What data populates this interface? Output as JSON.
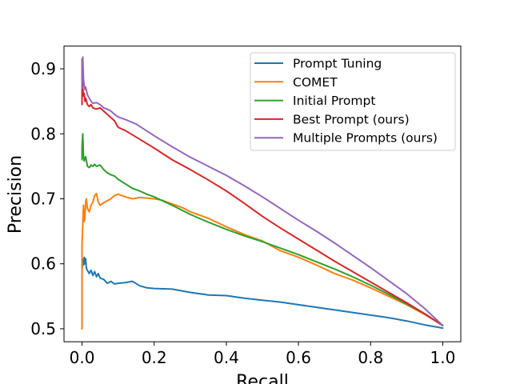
{
  "chart_data": {
    "type": "line",
    "title": "",
    "xlabel": "Recall",
    "ylabel": "Precision",
    "xlim": [
      -0.05,
      1.05
    ],
    "ylim": [
      0.48,
      0.935
    ],
    "xticks": [
      "0.0",
      "0.2",
      "0.4",
      "0.6",
      "0.8",
      "1.0"
    ],
    "yticks": [
      "0.5",
      "0.6",
      "0.7",
      "0.8",
      "0.9"
    ],
    "grid": false,
    "legend_position": "top-right",
    "series": [
      {
        "name": "Prompt Tuning",
        "color": "#1f77b4",
        "x": [
          0.0,
          0.0,
          0.002,
          0.004,
          0.006,
          0.008,
          0.01,
          0.012,
          0.015,
          0.02,
          0.025,
          0.03,
          0.035,
          0.04,
          0.045,
          0.05,
          0.06,
          0.07,
          0.08,
          0.09,
          0.1,
          0.12,
          0.14,
          0.16,
          0.18,
          0.2,
          0.25,
          0.3,
          0.35,
          0.4,
          0.45,
          0.5,
          0.55,
          0.6,
          0.65,
          0.7,
          0.75,
          0.8,
          0.85,
          0.9,
          0.95,
          1.0
        ],
        "y": [
          0.5,
          0.59,
          0.607,
          0.598,
          0.61,
          0.6,
          0.608,
          0.593,
          0.59,
          0.585,
          0.59,
          0.582,
          0.588,
          0.58,
          0.585,
          0.578,
          0.576,
          0.57,
          0.573,
          0.569,
          0.57,
          0.571,
          0.573,
          0.566,
          0.563,
          0.562,
          0.561,
          0.556,
          0.552,
          0.551,
          0.547,
          0.544,
          0.541,
          0.537,
          0.533,
          0.529,
          0.525,
          0.521,
          0.517,
          0.512,
          0.506,
          0.501
        ]
      },
      {
        "name": "COMET",
        "color": "#ff7f0e",
        "x": [
          0.0,
          0.0,
          0.002,
          0.004,
          0.006,
          0.008,
          0.01,
          0.012,
          0.015,
          0.02,
          0.025,
          0.03,
          0.035,
          0.04,
          0.045,
          0.05,
          0.06,
          0.07,
          0.08,
          0.09,
          0.1,
          0.12,
          0.14,
          0.16,
          0.18,
          0.2,
          0.22,
          0.24,
          0.26,
          0.28,
          0.3,
          0.35,
          0.4,
          0.45,
          0.5,
          0.55,
          0.6,
          0.65,
          0.7,
          0.75,
          0.8,
          0.85,
          0.9,
          0.95,
          1.0
        ],
        "y": [
          0.5,
          0.63,
          0.66,
          0.69,
          0.665,
          0.67,
          0.695,
          0.7,
          0.685,
          0.68,
          0.69,
          0.695,
          0.705,
          0.708,
          0.695,
          0.69,
          0.694,
          0.697,
          0.7,
          0.705,
          0.707,
          0.703,
          0.7,
          0.702,
          0.701,
          0.7,
          0.698,
          0.694,
          0.69,
          0.686,
          0.68,
          0.67,
          0.657,
          0.645,
          0.635,
          0.62,
          0.61,
          0.598,
          0.585,
          0.575,
          0.563,
          0.55,
          0.537,
          0.522,
          0.505
        ]
      },
      {
        "name": "Initial Prompt",
        "color": "#2ca02c",
        "x": [
          0.0,
          0.0,
          0.002,
          0.004,
          0.006,
          0.008,
          0.01,
          0.015,
          0.02,
          0.025,
          0.03,
          0.035,
          0.04,
          0.05,
          0.06,
          0.07,
          0.08,
          0.09,
          0.1,
          0.12,
          0.14,
          0.16,
          0.18,
          0.2,
          0.25,
          0.3,
          0.35,
          0.4,
          0.45,
          0.5,
          0.55,
          0.6,
          0.65,
          0.7,
          0.75,
          0.8,
          0.85,
          0.9,
          0.95,
          1.0
        ],
        "y": [
          0.76,
          0.78,
          0.8,
          0.765,
          0.758,
          0.762,
          0.765,
          0.75,
          0.748,
          0.752,
          0.75,
          0.753,
          0.75,
          0.752,
          0.745,
          0.74,
          0.737,
          0.735,
          0.73,
          0.723,
          0.716,
          0.712,
          0.707,
          0.703,
          0.69,
          0.676,
          0.664,
          0.653,
          0.643,
          0.634,
          0.624,
          0.614,
          0.603,
          0.592,
          0.58,
          0.567,
          0.553,
          0.538,
          0.523,
          0.505
        ]
      },
      {
        "name": "Best Prompt (ours)",
        "color": "#d62728",
        "x": [
          0.0,
          0.0,
          0.002,
          0.004,
          0.006,
          0.008,
          0.01,
          0.015,
          0.02,
          0.025,
          0.03,
          0.04,
          0.05,
          0.06,
          0.07,
          0.08,
          0.09,
          0.1,
          0.12,
          0.15,
          0.2,
          0.25,
          0.3,
          0.35,
          0.4,
          0.45,
          0.5,
          0.55,
          0.6,
          0.65,
          0.7,
          0.75,
          0.8,
          0.85,
          0.9,
          0.95,
          1.0
        ],
        "y": [
          0.845,
          0.915,
          0.87,
          0.858,
          0.862,
          0.85,
          0.855,
          0.845,
          0.842,
          0.845,
          0.84,
          0.838,
          0.84,
          0.835,
          0.83,
          0.825,
          0.82,
          0.81,
          0.805,
          0.795,
          0.778,
          0.76,
          0.745,
          0.729,
          0.712,
          0.693,
          0.673,
          0.655,
          0.638,
          0.621,
          0.604,
          0.588,
          0.572,
          0.556,
          0.54,
          0.523,
          0.505
        ]
      },
      {
        "name": "Multiple Prompts (ours)",
        "color": "#9467bd",
        "x": [
          0.0,
          0.0,
          0.002,
          0.004,
          0.006,
          0.008,
          0.01,
          0.015,
          0.02,
          0.025,
          0.03,
          0.04,
          0.05,
          0.06,
          0.07,
          0.08,
          0.09,
          0.1,
          0.12,
          0.15,
          0.2,
          0.25,
          0.3,
          0.35,
          0.4,
          0.45,
          0.5,
          0.55,
          0.6,
          0.65,
          0.7,
          0.75,
          0.8,
          0.85,
          0.9,
          0.95,
          1.0
        ],
        "y": [
          0.87,
          0.91,
          0.918,
          0.885,
          0.875,
          0.868,
          0.872,
          0.86,
          0.855,
          0.85,
          0.847,
          0.848,
          0.845,
          0.84,
          0.838,
          0.835,
          0.83,
          0.826,
          0.822,
          0.815,
          0.797,
          0.78,
          0.764,
          0.75,
          0.736,
          0.72,
          0.703,
          0.685,
          0.667,
          0.65,
          0.632,
          0.613,
          0.594,
          0.574,
          0.554,
          0.531,
          0.505
        ]
      }
    ]
  }
}
